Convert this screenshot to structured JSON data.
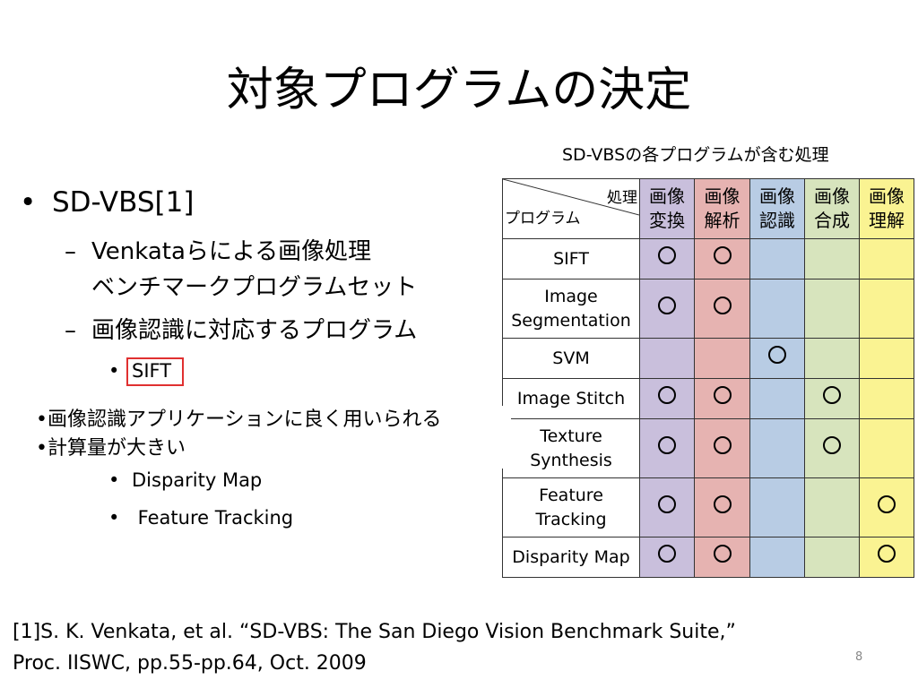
{
  "title": "対象プログラムの決定",
  "table_caption": "SD-VBSの各プログラムが含む処理",
  "bullets": {
    "l1": {
      "marker": "•",
      "text": "SD-VBS[1]"
    },
    "l2a": {
      "marker": "–",
      "line1": "Venkataらによる画像処理",
      "line2": "ベンチマークプログラムセット"
    },
    "l2b": {
      "marker": "–",
      "text": "画像認識に対応するプログラム"
    },
    "l3": [
      {
        "marker": "•",
        "text": "SIFT"
      },
      {
        "marker": "•",
        "text": "Disparity Map"
      },
      {
        "marker": "•",
        "text": " Feature Tracking"
      }
    ]
  },
  "callout": {
    "line1": "•画像認識アプリケーションに良く用いられる",
    "line2": "•計算量が大きい"
  },
  "table": {
    "corner_top": "処理",
    "corner_bottom": "プログラム",
    "columns": [
      {
        "line1": "画像",
        "line2": "変換",
        "color": "#c9bfdc"
      },
      {
        "line1": "画像",
        "line2": "解析",
        "color": "#e6b3b1"
      },
      {
        "line1": "画像",
        "line2": "認識",
        "color": "#b8cce4"
      },
      {
        "line1": "画像",
        "line2": "合成",
        "color": "#d7e4bd"
      },
      {
        "line1": "画像",
        "line2": "理解",
        "color": "#faf392"
      }
    ],
    "rows": [
      {
        "name1": "SIFT",
        "name2": "",
        "marks": [
          true,
          true,
          false,
          false,
          false
        ]
      },
      {
        "name1": "Image",
        "name2": "Segmentation",
        "marks": [
          true,
          true,
          false,
          false,
          false
        ]
      },
      {
        "name1": "SVM",
        "name2": "",
        "marks": [
          false,
          false,
          true,
          false,
          false
        ]
      },
      {
        "name1": "Image Stitch",
        "name2": "",
        "marks": [
          true,
          true,
          false,
          true,
          false
        ]
      },
      {
        "name1": "Texture",
        "name2": "Synthesis",
        "marks": [
          true,
          true,
          false,
          true,
          false
        ]
      },
      {
        "name1": "Feature",
        "name2": "Tracking",
        "marks": [
          true,
          true,
          false,
          false,
          true
        ]
      },
      {
        "name1": "Disparity Map",
        "name2": "",
        "marks": [
          true,
          true,
          false,
          false,
          true
        ]
      }
    ]
  },
  "footnote": {
    "line1": "[1]S. K. Venkata, et al. “SD-VBS: The San Diego Vision Benchmark Suite,”",
    "line2": "Proc. IISWC, pp.55-pp.64, Oct. 2009"
  },
  "page_number": "8"
}
